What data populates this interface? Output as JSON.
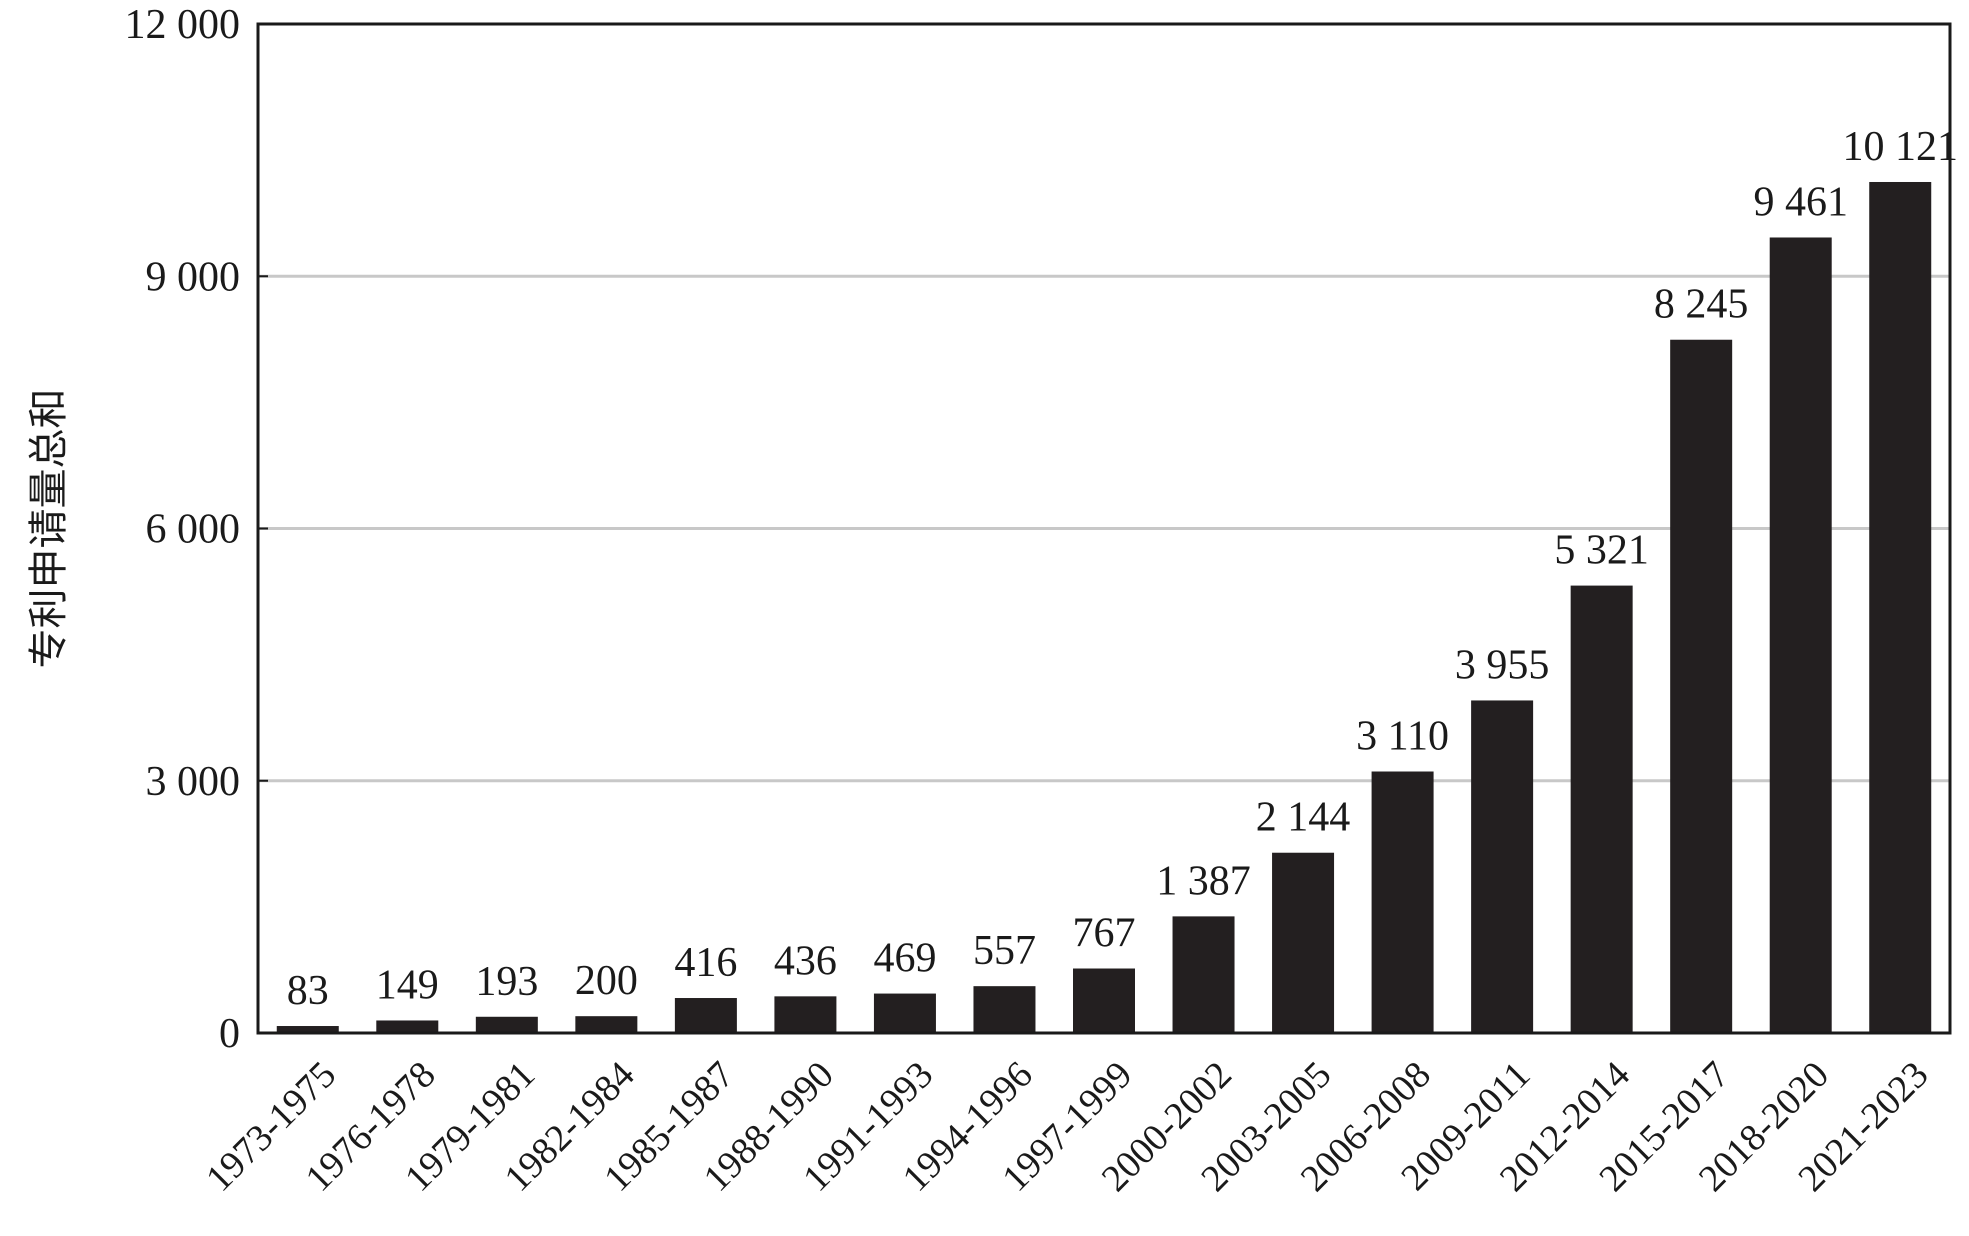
{
  "chart_data": {
    "type": "bar",
    "title": "",
    "xlabel": "",
    "ylabel": "专利申请量总和",
    "categories": [
      "1973-1975",
      "1976-1978",
      "1979-1981",
      "1982-1984",
      "1985-1987",
      "1988-1990",
      "1991-1993",
      "1994-1996",
      "1997-1999",
      "2000-2002",
      "2003-2005",
      "2006-2008",
      "2009-2011",
      "2012-2014",
      "2015-2017",
      "2018-2020",
      "2021-2023"
    ],
    "values": [
      83,
      149,
      193,
      200,
      416,
      436,
      469,
      557,
      767,
      1387,
      2144,
      3110,
      3955,
      5321,
      8245,
      9461,
      10121
    ],
    "value_labels": [
      "83",
      "149",
      "193",
      "200",
      "416",
      "436",
      "469",
      "557",
      "767",
      "1 387",
      "2 144",
      "3 110",
      "3 955",
      "5 321",
      "8 245",
      "9 461",
      "10 121"
    ],
    "ylim": [
      0,
      12000
    ],
    "y_ticks": [
      0,
      3000,
      6000,
      9000,
      12000
    ],
    "y_tick_labels": [
      "0",
      "3 000",
      "6 000",
      "9 000",
      "12 000"
    ],
    "grid": true,
    "legend": false,
    "colors": {
      "bar": "#231f20",
      "grid": "#c8c8c8",
      "axis": "#1a1a1a"
    }
  }
}
